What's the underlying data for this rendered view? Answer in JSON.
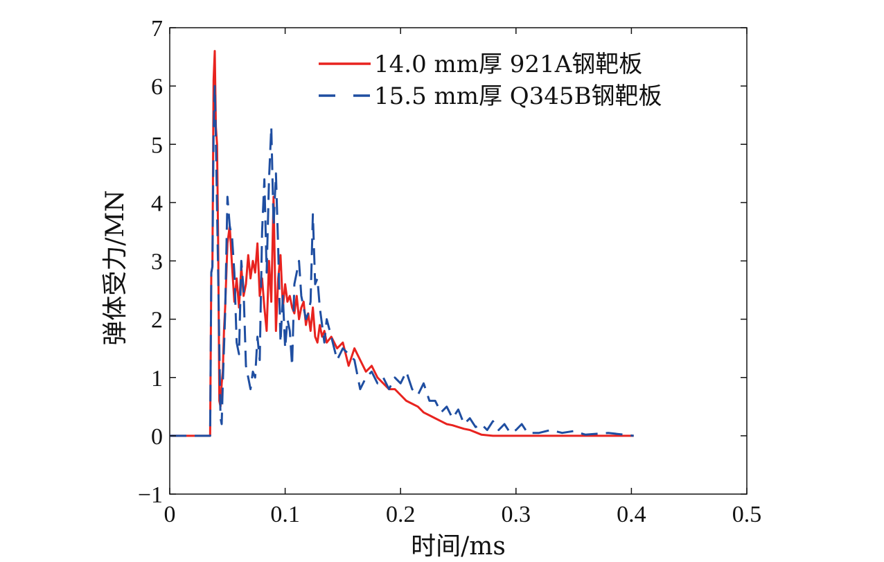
{
  "chart_data": {
    "type": "line",
    "title": "",
    "xlabel": "时间/ms",
    "ylabel": "弹体受力/MN",
    "xlim": [
      0,
      0.5
    ],
    "ylim": [
      -1,
      7
    ],
    "xticks": [
      0,
      0.1,
      0.2,
      0.3,
      0.4,
      0.5
    ],
    "xtick_labels": [
      "0",
      "0.1",
      "0.2",
      "0.3",
      "0.4",
      "0.5"
    ],
    "yticks": [
      -1,
      0,
      1,
      2,
      3,
      4,
      5,
      6,
      7
    ],
    "ytick_labels": [
      "−1",
      "0",
      "1",
      "2",
      "3",
      "4",
      "5",
      "6",
      "7"
    ],
    "grid": false,
    "legend_position": "top-right",
    "series": [
      {
        "name": "14.0 mm厚 921A钢靶板",
        "color": "#e8231f",
        "style": "solid",
        "x": [
          0.0,
          0.035,
          0.036,
          0.037,
          0.038,
          0.039,
          0.04,
          0.041,
          0.042,
          0.043,
          0.044,
          0.045,
          0.046,
          0.047,
          0.048,
          0.05,
          0.052,
          0.054,
          0.056,
          0.058,
          0.06,
          0.062,
          0.064,
          0.066,
          0.068,
          0.07,
          0.072,
          0.074,
          0.076,
          0.078,
          0.08,
          0.082,
          0.084,
          0.086,
          0.088,
          0.09,
          0.092,
          0.094,
          0.096,
          0.098,
          0.1,
          0.102,
          0.104,
          0.106,
          0.108,
          0.11,
          0.112,
          0.114,
          0.116,
          0.118,
          0.12,
          0.122,
          0.124,
          0.126,
          0.128,
          0.13,
          0.132,
          0.134,
          0.136,
          0.14,
          0.145,
          0.15,
          0.155,
          0.16,
          0.165,
          0.17,
          0.175,
          0.18,
          0.185,
          0.19,
          0.195,
          0.2,
          0.205,
          0.21,
          0.215,
          0.22,
          0.225,
          0.23,
          0.235,
          0.24,
          0.245,
          0.25,
          0.255,
          0.26,
          0.265,
          0.27,
          0.28,
          0.3,
          0.32,
          0.35,
          0.38,
          0.402
        ],
        "values": [
          0.0,
          0.0,
          2.8,
          2.9,
          6.1,
          6.6,
          5.3,
          5.0,
          3.2,
          0.6,
          0.5,
          0.9,
          1.1,
          1.8,
          2.2,
          3.3,
          3.6,
          2.9,
          2.3,
          2.7,
          2.2,
          2.9,
          2.4,
          2.6,
          3.1,
          2.7,
          3.0,
          2.8,
          3.3,
          2.4,
          2.7,
          2.2,
          1.8,
          3.0,
          2.3,
          4.1,
          1.8,
          2.7,
          3.1,
          2.2,
          2.6,
          2.3,
          2.4,
          2.2,
          2.1,
          2.4,
          2.0,
          2.2,
          2.3,
          1.9,
          2.1,
          1.8,
          2.2,
          1.7,
          1.6,
          1.9,
          1.7,
          1.8,
          1.6,
          1.7,
          1.5,
          1.6,
          1.2,
          1.5,
          1.3,
          1.1,
          1.2,
          1.0,
          0.9,
          0.8,
          0.8,
          0.7,
          0.6,
          0.55,
          0.5,
          0.4,
          0.35,
          0.3,
          0.25,
          0.2,
          0.18,
          0.15,
          0.12,
          0.1,
          0.06,
          0.02,
          0.0,
          0.0,
          0.0,
          0.0,
          0.0,
          0.0
        ]
      },
      {
        "name": "15.5 mm厚 Q345B钢靶板",
        "color": "#1f4ea1",
        "style": "dashed",
        "x": [
          0.0,
          0.035,
          0.036,
          0.037,
          0.038,
          0.039,
          0.04,
          0.041,
          0.042,
          0.043,
          0.044,
          0.045,
          0.046,
          0.048,
          0.05,
          0.052,
          0.054,
          0.056,
          0.058,
          0.06,
          0.062,
          0.064,
          0.066,
          0.068,
          0.07,
          0.072,
          0.074,
          0.076,
          0.078,
          0.08,
          0.082,
          0.084,
          0.086,
          0.088,
          0.09,
          0.092,
          0.094,
          0.096,
          0.098,
          0.1,
          0.102,
          0.104,
          0.106,
          0.108,
          0.11,
          0.112,
          0.114,
          0.116,
          0.118,
          0.12,
          0.122,
          0.124,
          0.126,
          0.128,
          0.13,
          0.132,
          0.134,
          0.136,
          0.14,
          0.145,
          0.15,
          0.155,
          0.16,
          0.165,
          0.17,
          0.175,
          0.18,
          0.185,
          0.19,
          0.195,
          0.2,
          0.205,
          0.21,
          0.215,
          0.22,
          0.225,
          0.23,
          0.235,
          0.24,
          0.245,
          0.25,
          0.255,
          0.26,
          0.265,
          0.27,
          0.275,
          0.28,
          0.285,
          0.29,
          0.295,
          0.3,
          0.305,
          0.31,
          0.32,
          0.33,
          0.34,
          0.35,
          0.36,
          0.38,
          0.402
        ],
        "values": [
          0.0,
          0.0,
          2.8,
          2.9,
          5.2,
          6.0,
          5.1,
          3.9,
          2.7,
          1.5,
          0.3,
          0.2,
          0.9,
          2.1,
          4.1,
          3.6,
          3.4,
          2.8,
          1.6,
          1.4,
          3.0,
          2.5,
          1.2,
          1.0,
          0.8,
          1.1,
          1.0,
          1.7,
          1.3,
          3.5,
          4.4,
          2.8,
          4.4,
          5.3,
          3.6,
          4.5,
          3.2,
          1.6,
          2.4,
          1.5,
          2.0,
          1.8,
          1.2,
          2.6,
          2.8,
          3.0,
          2.4,
          2.2,
          2.0,
          2.1,
          2.3,
          3.8,
          2.6,
          2.7,
          2.2,
          1.9,
          1.6,
          2.0,
          1.7,
          1.3,
          1.5,
          1.4,
          1.3,
          0.8,
          1.0,
          1.1,
          0.9,
          1.0,
          0.8,
          1.0,
          0.9,
          1.1,
          0.8,
          0.7,
          0.9,
          0.6,
          0.6,
          0.4,
          0.5,
          0.3,
          0.45,
          0.2,
          0.3,
          0.15,
          0.2,
          0.1,
          0.25,
          0.1,
          0.2,
          0.05,
          0.1,
          0.2,
          0.05,
          0.05,
          0.1,
          0.05,
          0.08,
          0.02,
          0.05,
          0.0
        ]
      }
    ]
  }
}
